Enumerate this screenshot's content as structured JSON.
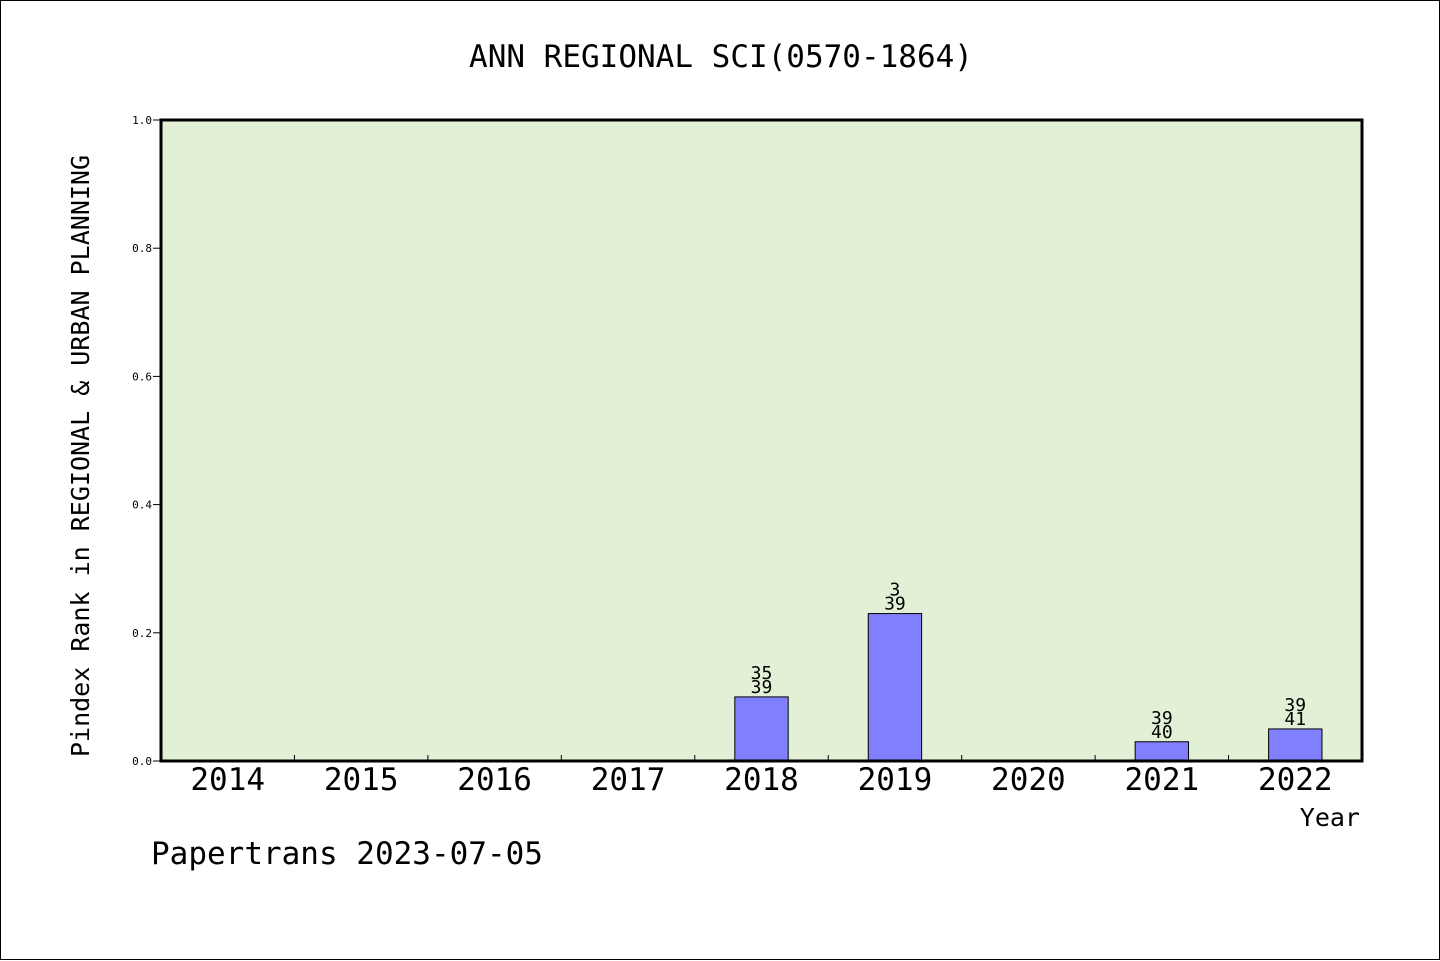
{
  "chart_data": {
    "type": "bar",
    "title": "ANN REGIONAL SCI(0570-1864)",
    "xlabel": "Year",
    "ylabel": "Pindex Rank in REGIONAL & URBAN PLANNING",
    "categories": [
      "2014",
      "2015",
      "2016",
      "2017",
      "2018",
      "2019",
      "2020",
      "2021",
      "2022"
    ],
    "values": [
      0,
      0,
      0,
      0,
      0.1,
      0.23,
      0,
      0.03,
      0.05
    ],
    "bar_labels": [
      {
        "category": "2018",
        "rank": "35",
        "total": "39"
      },
      {
        "category": "2019",
        "rank": "3",
        "total": "39"
      },
      {
        "category": "2021",
        "rank": "39",
        "total": "40"
      },
      {
        "category": "2022",
        "rank": "39",
        "total": "41"
      }
    ],
    "ylim": [
      0,
      1.0
    ],
    "yticks": [
      "0.0",
      "0.2",
      "0.4",
      "0.6",
      "0.8",
      "1.0"
    ],
    "grid": false,
    "colors": {
      "plot_background": "#e2f0d6",
      "bar_fill": "#8080ff",
      "bar_stroke": "#000000"
    }
  },
  "footer": "Papertrans 2023-07-05"
}
